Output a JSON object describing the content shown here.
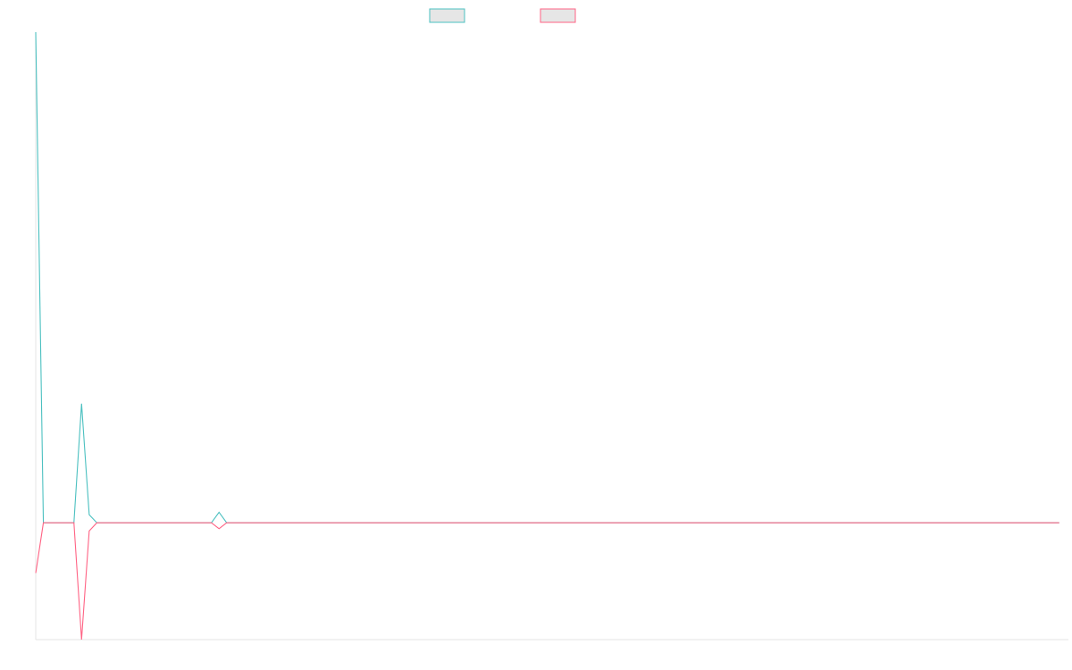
{
  "chart_data": {
    "type": "line",
    "title": "",
    "xlabel": "",
    "ylabel": "",
    "x_count": 135,
    "ylim": [
      -1.0,
      4.2
    ],
    "grid": false,
    "legend_position": "top-center",
    "series": [
      {
        "color": "#4bc0c0",
        "values": [
          4.2,
          0.0,
          0.0,
          0.0,
          0.0,
          0.0,
          1.02,
          0.07,
          0.0,
          0.0,
          0.0,
          0.0,
          0.0,
          0.0,
          0.0,
          0.0,
          0.0,
          0.0,
          0.0,
          0.0,
          0.0,
          0.0,
          0.0,
          0.0,
          0.09,
          0.0,
          0.0,
          0.0,
          0.0,
          0.0,
          0.0,
          0.0,
          0.0,
          0.0,
          0.0,
          0.0,
          0.0,
          0.0,
          0.0,
          0.0,
          0.0,
          0.0,
          0.0,
          0.0,
          0.0,
          0.0,
          0.0,
          0.0,
          0.0,
          0.0,
          0.0,
          0.0,
          0.0,
          0.0,
          0.0,
          0.0,
          0.0,
          0.0,
          0.0,
          0.0,
          0.0,
          0.0,
          0.0,
          0.0,
          0.0,
          0.0,
          0.0,
          0.0,
          0.0,
          0.0,
          0.0,
          0.0,
          0.0,
          0.0,
          0.0,
          0.0,
          0.0,
          0.0,
          0.0,
          0.0,
          0.0,
          0.0,
          0.0,
          0.0,
          0.0,
          0.0,
          0.0,
          0.0,
          0.0,
          0.0,
          0.0,
          0.0,
          0.0,
          0.0,
          0.0,
          0.0,
          0.0,
          0.0,
          0.0,
          0.0,
          0.0,
          0.0,
          0.0,
          0.0,
          0.0,
          0.0,
          0.0,
          0.0,
          0.0,
          0.0,
          0.0,
          0.0,
          0.0,
          0.0,
          0.0,
          0.0,
          0.0,
          0.0,
          0.0,
          0.0,
          0.0,
          0.0,
          0.0,
          0.0,
          0.0,
          0.0,
          0.0,
          0.0,
          0.0,
          0.0,
          0.0,
          0.0,
          0.0,
          0.0,
          0.0
        ]
      },
      {
        "color": "#ff6384",
        "values": [
          -0.43,
          0.0,
          0.0,
          0.0,
          0.0,
          0.0,
          -1.0,
          -0.07,
          0.0,
          0.0,
          0.0,
          0.0,
          0.0,
          0.0,
          0.0,
          0.0,
          0.0,
          0.0,
          0.0,
          0.0,
          0.0,
          0.0,
          0.0,
          0.0,
          -0.05,
          0.0,
          0.0,
          0.0,
          0.0,
          0.0,
          0.0,
          0.0,
          0.0,
          0.0,
          0.0,
          0.0,
          0.0,
          0.0,
          0.0,
          0.0,
          0.0,
          0.0,
          0.0,
          0.0,
          0.0,
          0.0,
          0.0,
          0.0,
          0.0,
          0.0,
          0.0,
          0.0,
          0.0,
          0.0,
          0.0,
          0.0,
          0.0,
          0.0,
          0.0,
          0.0,
          0.0,
          0.0,
          0.0,
          0.0,
          0.0,
          0.0,
          0.0,
          0.0,
          0.0,
          0.0,
          0.0,
          0.0,
          0.0,
          0.0,
          0.0,
          0.0,
          0.0,
          0.0,
          0.0,
          0.0,
          0.0,
          0.0,
          0.0,
          0.0,
          0.0,
          0.0,
          0.0,
          0.0,
          0.0,
          0.0,
          0.0,
          0.0,
          0.0,
          0.0,
          0.0,
          0.0,
          0.0,
          0.0,
          0.0,
          0.0,
          0.0,
          0.0,
          0.0,
          0.0,
          0.0,
          0.0,
          0.0,
          0.0,
          0.0,
          0.0,
          0.0,
          0.0,
          0.0,
          0.0,
          0.0,
          0.0,
          0.0,
          0.0,
          0.0,
          0.0,
          0.0,
          0.0,
          0.0,
          0.0,
          0.0,
          0.0,
          0.0,
          0.0,
          0.0,
          0.0,
          0.0,
          0.0,
          0.0,
          0.0,
          0.0
        ]
      }
    ]
  }
}
